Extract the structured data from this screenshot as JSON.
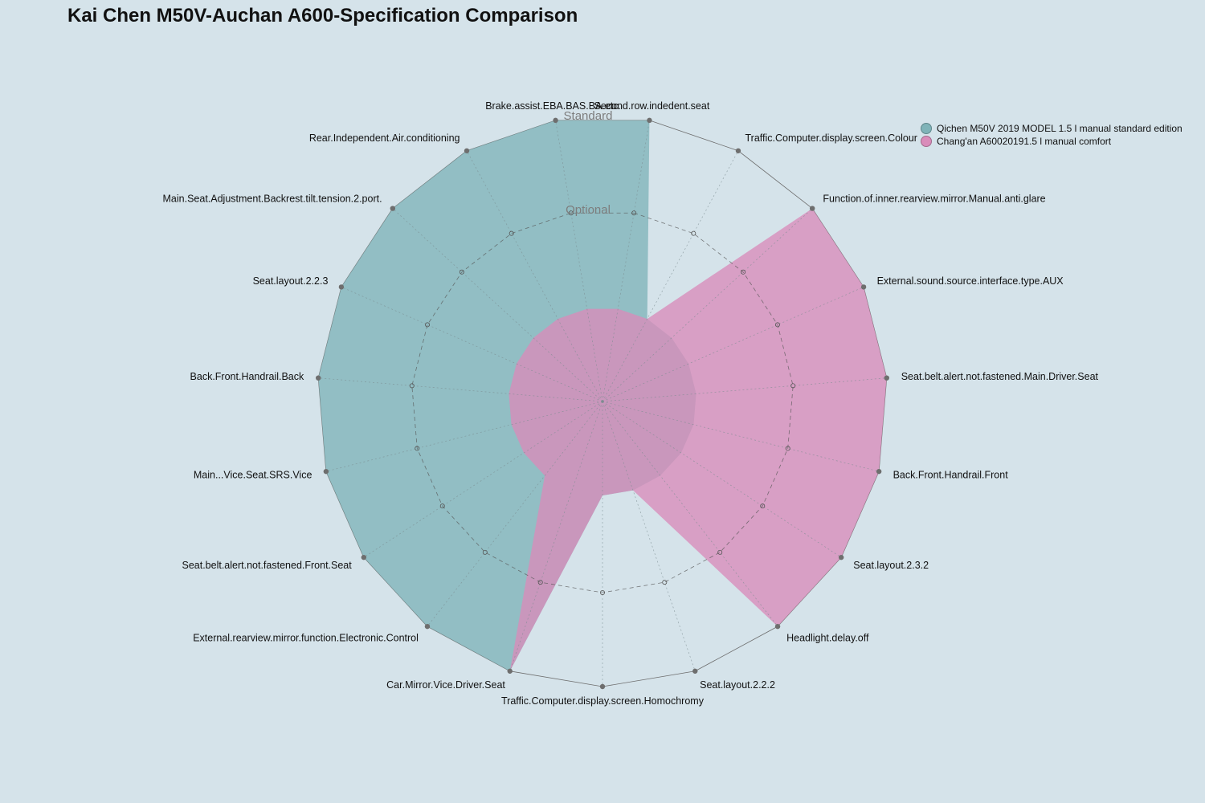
{
  "chart_data": {
    "type": "radar",
    "title": "Kai Chen M50V-Auchan A600-Specification Comparison",
    "levels": [
      "Optional",
      "Standard"
    ],
    "axes": [
      "Second.row.indedent.seat",
      "Traffic.Computer.display.screen.Colour",
      "Function.of.inner.rearview.mirror.Manual.anti.glare",
      "External.sound.source.interface.type.AUX",
      "Seat.belt.alert.not.fastened.Main.Driver.Seat",
      "Back.Front.Handrail.Front",
      "Seat.layout.2.3.2",
      "Headlight.delay.off",
      "Seat.layout.2.2.2",
      "Traffic.Computer.display.screen.Homochromy",
      "Car.Mirror.Vice.Driver.Seat",
      "External.rearview.mirror.function.Electronic.Control",
      "Seat.belt.alert.not.fastened.Front.Seat",
      "Main...Vice.Seat.SRS.Vice",
      "Back.Front.Handrail.Back",
      "Seat.layout.2.2.3",
      "Main.Seat.Adjustment.Backrest.tilt.tension.2.port.",
      "Rear.Independent.Air.conditioning",
      "Brake.assist.EBA.BAS.BA.etc."
    ],
    "series": [
      {
        "name": "Qichen M50V 2019 MODEL 1.5 l manual standard edition",
        "color": "#7fb3b8",
        "values": [
          2,
          0,
          0,
          0,
          0,
          0,
          0,
          0,
          0,
          0,
          2,
          2,
          2,
          2,
          2,
          2,
          2,
          2,
          2
        ]
      },
      {
        "name": "Chang'an A60020191.5 l manual comfort",
        "color": "#d98cba",
        "values": [
          0,
          0,
          2,
          2,
          2,
          2,
          2,
          2,
          0,
          0,
          2,
          0,
          0,
          0,
          0,
          0,
          0,
          0,
          0
        ]
      }
    ],
    "legend": "top-right"
  }
}
